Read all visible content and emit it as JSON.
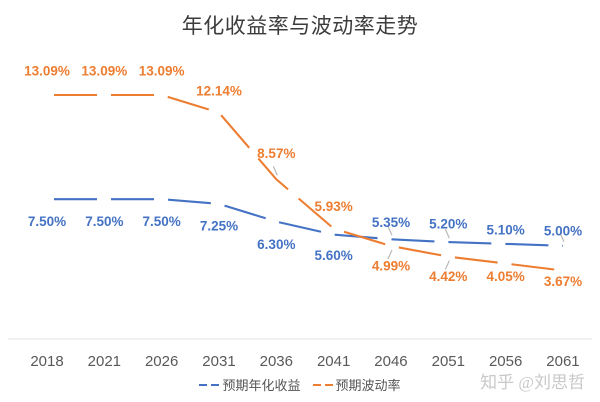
{
  "title": "年化收益率与波动率走势",
  "watermark": "知乎 @刘思哲",
  "colors": {
    "blue": "#4472c4",
    "orange": "#ed7d31",
    "axis_line": "#e3e3e3",
    "tick_text": "#595959",
    "leader_tick": "#b9b9b9"
  },
  "chart_data": {
    "type": "line",
    "title": "年化收益率与波动率走势",
    "x_labels": [
      "2018",
      "2021",
      "2026",
      "2031",
      "2036",
      "2041",
      "2046",
      "2051",
      "2056",
      "2061"
    ],
    "value_format": "percent",
    "grid": false,
    "y_axis_visible": false,
    "line_style": "dashed",
    "legend_position": "bottom",
    "series": [
      {
        "name": "预期年化收益",
        "color": "#4472c4",
        "values": [
          7.5,
          7.5,
          7.5,
          7.25,
          6.3,
          5.6,
          5.35,
          5.2,
          5.1,
          5.0
        ],
        "labels": [
          "7.50%",
          "7.50%",
          "7.50%",
          "7.25%",
          "6.30%",
          "5.60%",
          "5.35%",
          "5.20%",
          "5.10%",
          "5.00%"
        ],
        "label_side": [
          "below",
          "below",
          "below",
          "below",
          "below",
          "below",
          "above",
          "above",
          "above",
          "above"
        ],
        "label_dy": [
          23,
          23,
          23,
          23,
          24,
          22,
          -16,
          -17,
          -13,
          -14
        ]
      },
      {
        "name": "预期波动率",
        "color": "#ed7d31",
        "values": [
          13.09,
          13.09,
          13.09,
          12.14,
          8.57,
          5.93,
          4.99,
          4.42,
          4.05,
          3.67
        ],
        "labels": [
          "13.09%",
          "13.09%",
          "13.09%",
          "12.14%",
          "8.57%",
          "5.93%",
          "4.99%",
          "4.42%",
          "4.05%",
          "3.67%"
        ],
        "label_side": [
          "above",
          "above",
          "above",
          "above",
          "above",
          "above",
          "below",
          "below",
          "below",
          "below"
        ],
        "label_dy": [
          -23,
          -23,
          -23,
          -21,
          -25,
          -21,
          21,
          21,
          14,
          12
        ]
      }
    ],
    "leader_ticks": [
      {
        "series": 1,
        "point": 4
      },
      {
        "series": 0,
        "point": 6
      },
      {
        "series": 1,
        "point": 6
      },
      {
        "series": 0,
        "point": 7
      },
      {
        "series": 1,
        "point": 7
      },
      {
        "series": 0,
        "point": 9
      }
    ]
  }
}
